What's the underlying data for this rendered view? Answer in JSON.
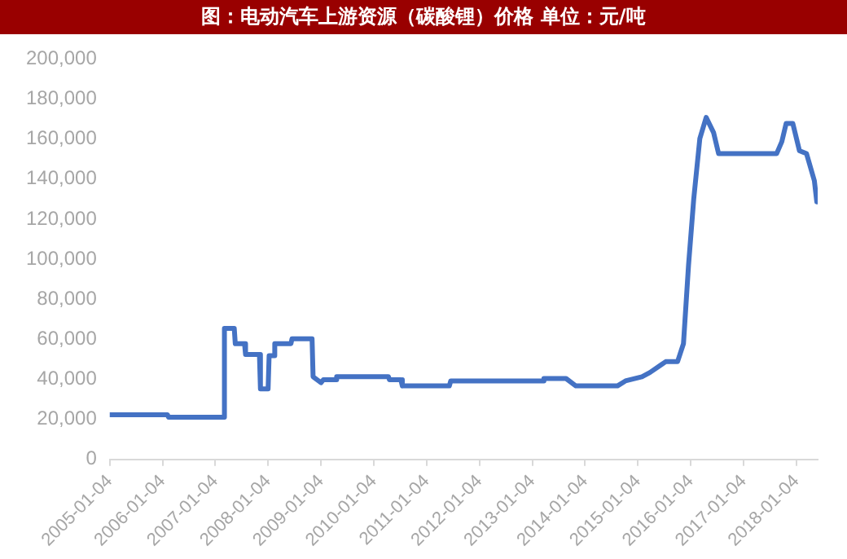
{
  "chart_data": {
    "type": "line",
    "title": "图：电动汽车上游资源（碳酸锂）价格 单位：元/吨",
    "x": [
      "2005-01-04",
      "2006-02-07",
      "2006-02-14",
      "2007-03-01",
      "2007-03-08",
      "2007-05-15",
      "2007-05-22",
      "2007-07-25",
      "2007-08-01",
      "2007-11-05",
      "2007-11-12",
      "2008-01-04",
      "2008-01-11",
      "2008-02-12",
      "2008-02-19",
      "2008-06-10",
      "2008-06-17",
      "2008-11-03",
      "2008-11-10",
      "2009-01-04",
      "2009-01-20",
      "2009-04-15",
      "2009-04-22",
      "2010-04-15",
      "2010-04-22",
      "2010-07-10",
      "2010-07-20",
      "2011-06-10",
      "2011-06-20",
      "2013-03-15",
      "2013-03-25",
      "2013-08-25",
      "2013-11-01",
      "2014-08-15",
      "2014-10-10",
      "2015-02-01",
      "2015-03-28",
      "2015-06-15",
      "2015-07-15",
      "2015-10-05",
      "2015-11-15",
      "2015-12-20",
      "2016-01-25",
      "2016-03-07",
      "2016-04-20",
      "2016-06-10",
      "2016-07-15",
      "2017-08-20",
      "2017-09-25",
      "2017-10-25",
      "2017-12-10",
      "2018-01-25",
      "2018-03-15",
      "2018-05-08",
      "2018-05-25"
    ],
    "series": [
      {
        "color": "#4472c4",
        "values": [
          22300,
          22300,
          21100,
          21100,
          65400,
          65400,
          57800,
          57800,
          52400,
          52400,
          35200,
          35200,
          51800,
          51800,
          57800,
          57800,
          60200,
          60200,
          41300,
          38300,
          39800,
          39800,
          41300,
          41300,
          39800,
          39800,
          36700,
          36700,
          39200,
          39200,
          40400,
          40400,
          36700,
          36700,
          39200,
          41300,
          43400,
          47300,
          48800,
          48800,
          57800,
          97000,
          130100,
          160200,
          170800,
          163300,
          152700,
          152700,
          158700,
          167800,
          167800,
          154200,
          152700,
          139200,
          128600
        ]
      }
    ],
    "xlim": [
      "2005-01-04",
      "2018-05-31"
    ],
    "xticks": [
      "2005-01-04",
      "2006-01-04",
      "2007-01-04",
      "2008-01-04",
      "2009-01-04",
      "2010-01-04",
      "2011-01-04",
      "2012-01-04",
      "2013-01-04",
      "2014-01-04",
      "2015-01-04",
      "2016-01-04",
      "2017-01-04",
      "2018-01-04"
    ],
    "ylim": [
      0,
      200000
    ],
    "yticks": [
      {
        "value": 0,
        "label": "0"
      },
      {
        "value": 20000,
        "label": "20,000"
      },
      {
        "value": 40000,
        "label": "40,000"
      },
      {
        "value": 60000,
        "label": "60,000"
      },
      {
        "value": 80000,
        "label": "80,000"
      },
      {
        "value": 100000,
        "label": "100,000"
      },
      {
        "value": 120000,
        "label": "120,000"
      },
      {
        "value": 140000,
        "label": "140,000"
      },
      {
        "value": 160000,
        "label": "160,000"
      },
      {
        "value": 180000,
        "label": "180,000"
      },
      {
        "value": 200000,
        "label": "200,000"
      }
    ],
    "grid": false,
    "legend": false,
    "marker": "none",
    "line_style": "solid"
  }
}
